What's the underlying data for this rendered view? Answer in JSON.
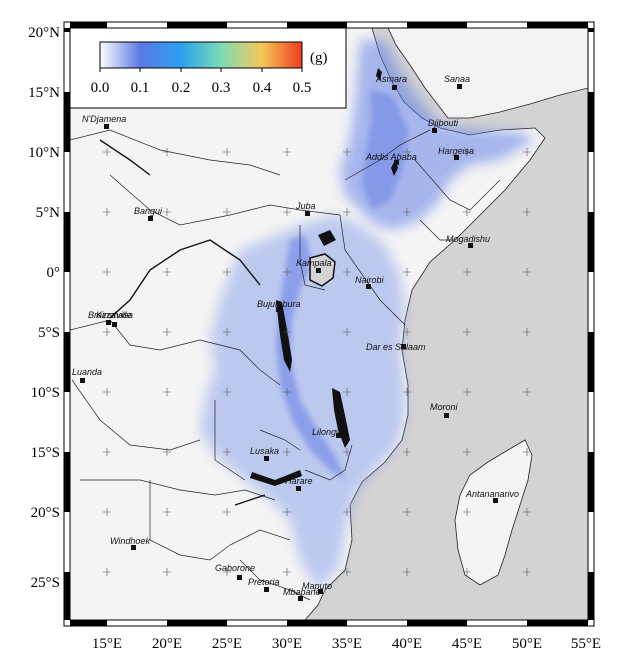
{
  "map": {
    "colorbar": {
      "ticks": [
        "0.0",
        "0.1",
        "0.2",
        "0.3",
        "0.4",
        "0.5"
      ],
      "unit": "(g)",
      "colors": [
        "#ffffff",
        "#5a78e6",
        "#2aa0f0",
        "#7cdcb4",
        "#f5c85a",
        "#f03c1e"
      ]
    },
    "lat_labels": [
      "20°N",
      "15°N",
      "10°N",
      "5°N",
      "0°",
      "5°S",
      "10°S",
      "15°S",
      "20°S",
      "25°S"
    ],
    "lon_labels": [
      "15°E",
      "20°E",
      "25°E",
      "30°E",
      "35°E",
      "40°E",
      "45°E",
      "50°E",
      "55°E"
    ],
    "cities": [
      {
        "name": "Asmara"
      },
      {
        "name": "Sanaa"
      },
      {
        "name": "N'Djamena"
      },
      {
        "name": "Djibouti"
      },
      {
        "name": "Addis Ababa"
      },
      {
        "name": "Hargeisa"
      },
      {
        "name": "Bangui"
      },
      {
        "name": "Juba"
      },
      {
        "name": "Mogadishu"
      },
      {
        "name": "Kampala"
      },
      {
        "name": "Nairobi"
      },
      {
        "name": "Bujumbura"
      },
      {
        "name": "Brazzaville"
      },
      {
        "name": "Kinshasa"
      },
      {
        "name": "Dar es Salaam"
      },
      {
        "name": "Luanda"
      },
      {
        "name": "Moroni"
      },
      {
        "name": "Lilongwe"
      },
      {
        "name": "Lusaka"
      },
      {
        "name": "Harare"
      },
      {
        "name": "Antananarivo"
      },
      {
        "name": "Windhoek"
      },
      {
        "name": "Gaborone"
      },
      {
        "name": "Pretoria"
      },
      {
        "name": "Maputo"
      },
      {
        "name": "Mbabane"
      }
    ],
    "colors": {
      "ocean": "#d3d3d3",
      "land": "#f2f2f2",
      "hazard": "#6f8ee8"
    }
  }
}
